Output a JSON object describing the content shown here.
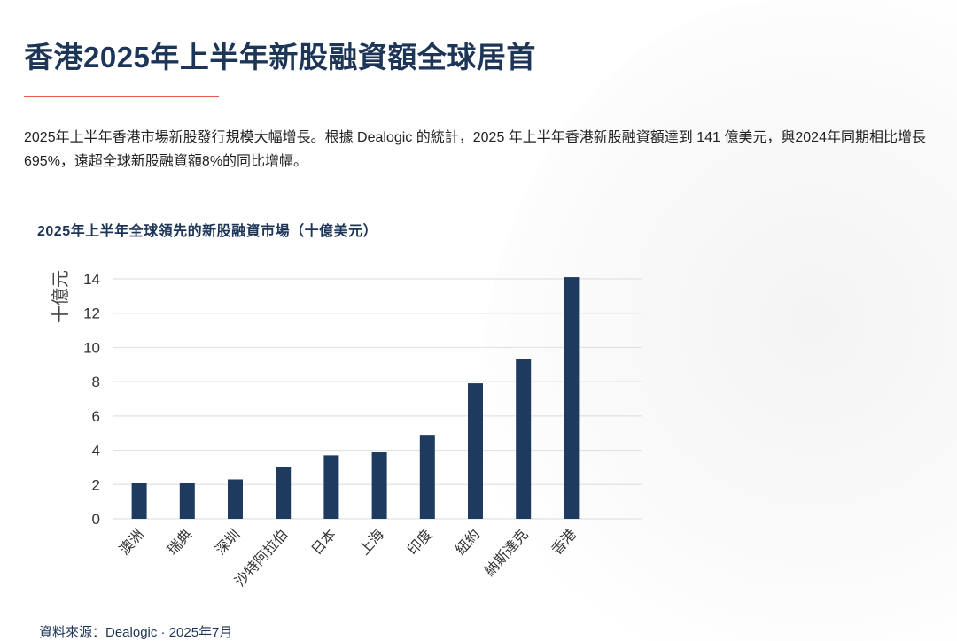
{
  "title": "香港2025年上半年新股融資額全球居首",
  "intro": "2025年上半年香港市場新股發行規模大幅增長。根據 Dealogic 的統計，2025 年上半年香港新股融資額達到 141 億美元，與2024年同期相比增長695%，遠超全球新股融資額8%的同比增幅。",
  "source": "資料來源：Dealogic · 2025年7月",
  "colors": {
    "bar": "#1f3a5f",
    "title": "#1d3557",
    "accent_rule": "#e8584f",
    "grid": "#e2e2e2"
  },
  "chart_data": {
    "type": "bar",
    "title": "2025年上半年全球領先的新股融資市場（十億美元）",
    "ylabel": "十億元",
    "xlabel": "",
    "categories": [
      "澳洲",
      "瑞典",
      "深圳",
      "沙特阿拉伯",
      "日本",
      "上海",
      "印度",
      "紐約",
      "納斯達克",
      "香港"
    ],
    "values": [
      2.1,
      2.1,
      2.3,
      3.0,
      3.7,
      3.9,
      4.9,
      7.9,
      9.3,
      14.1
    ],
    "ylim": [
      0,
      14
    ],
    "yticks": [
      "0",
      "2",
      "4",
      "6",
      "8",
      "10",
      "12",
      "14"
    ],
    "grid": true,
    "legend": "none"
  }
}
